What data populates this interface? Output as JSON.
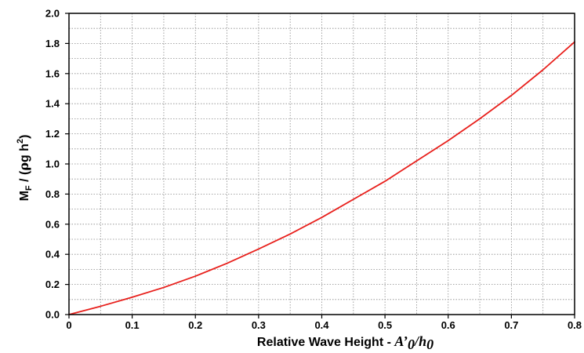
{
  "chart_data": {
    "type": "line",
    "title": "",
    "xlabel": {
      "prefix": "Relative Wave Height  - ",
      "var_a": "A’",
      "sub_a": "0",
      "sep": "/",
      "var_h": "h",
      "sub_h": "0"
    },
    "ylabel": {
      "m": "M",
      "m_sub": "F",
      "mid": " / (",
      "rho": "ρ",
      "gh": "g h",
      "sq": "2",
      "close": ")"
    },
    "xlim": [
      0,
      0.8
    ],
    "ylim": [
      0,
      2.0
    ],
    "xticks": [
      "0",
      "0.1",
      "0.2",
      "0.3",
      "0.4",
      "0.5",
      "0.6",
      "0.7",
      "0.8"
    ],
    "yticks": [
      "0.0",
      "0.2",
      "0.4",
      "0.6",
      "0.8",
      "1.0",
      "1.2",
      "1.4",
      "1.6",
      "1.8",
      "2.0"
    ],
    "grid": true,
    "series": [
      {
        "color": "#e8201c",
        "x": [
          0,
          0.05,
          0.1,
          0.15,
          0.2,
          0.25,
          0.3,
          0.35,
          0.4,
          0.45,
          0.5,
          0.55,
          0.6,
          0.65,
          0.7,
          0.75,
          0.8
        ],
        "y": [
          0,
          0.055,
          0.115,
          0.18,
          0.255,
          0.34,
          0.435,
          0.535,
          0.645,
          0.765,
          0.885,
          1.02,
          1.155,
          1.3,
          1.455,
          1.625,
          1.81
        ]
      }
    ]
  }
}
